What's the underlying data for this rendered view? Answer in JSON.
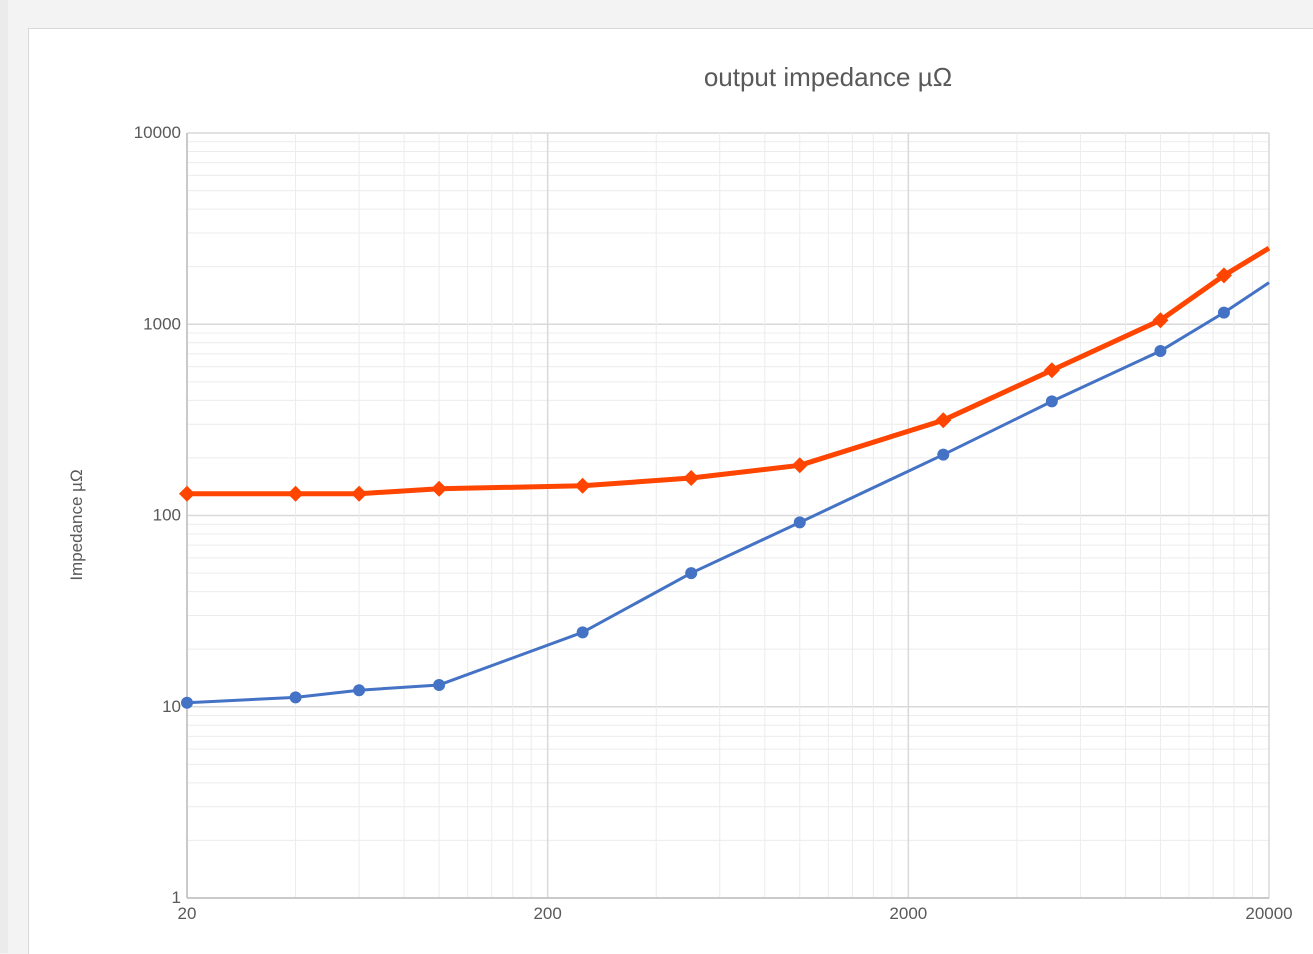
{
  "chart_data": {
    "type": "line",
    "title": "output impedance µΩ",
    "xlabel": "",
    "ylabel": "Impedance µΩ",
    "x_scale": "log",
    "y_scale": "log",
    "xlim": [
      20,
      20000
    ],
    "ylim": [
      1,
      10000
    ],
    "x_ticks": [
      "20",
      "200",
      "2000",
      "20000"
    ],
    "y_ticks": [
      "1",
      "10",
      "100",
      "1000",
      "10000"
    ],
    "grid": true,
    "legend": "none",
    "series": [
      {
        "color": "#ff4500",
        "marker": "diamond",
        "x": [
          20,
          40,
          60,
          100,
          250,
          500,
          1000,
          2500,
          5000,
          10000,
          15000,
          20000
        ],
        "values": [
          130,
          130,
          130,
          138,
          143,
          157,
          183,
          315,
          575,
          1050,
          1800,
          2500
        ]
      },
      {
        "color": "#4472c4",
        "marker": "circle",
        "x": [
          20,
          40,
          60,
          100,
          250,
          500,
          1000,
          2500,
          5000,
          10000,
          15000,
          20000
        ],
        "values": [
          10.5,
          11.2,
          12.2,
          13.0,
          24.5,
          50.0,
          92.0,
          208,
          395,
          725,
          1150,
          1650
        ]
      }
    ]
  }
}
